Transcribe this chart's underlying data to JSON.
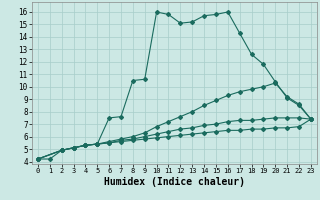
{
  "xlabel": "Humidex (Indice chaleur)",
  "bg_color": "#cce8e4",
  "line_color": "#1a6b5e",
  "xlim": [
    -0.5,
    23.5
  ],
  "ylim": [
    3.8,
    16.8
  ],
  "yticks": [
    4,
    5,
    6,
    7,
    8,
    9,
    10,
    11,
    12,
    13,
    14,
    15,
    16
  ],
  "xticks": [
    0,
    1,
    2,
    3,
    4,
    5,
    6,
    7,
    8,
    9,
    10,
    11,
    12,
    13,
    14,
    15,
    16,
    17,
    18,
    19,
    20,
    21,
    22,
    23
  ],
  "series": [
    {
      "x": [
        0,
        1,
        2,
        3,
        4,
        5,
        6,
        7,
        8,
        9,
        10,
        11,
        12,
        13,
        14,
        15,
        16,
        17,
        18,
        19,
        20,
        21,
        22,
        23
      ],
      "y": [
        4.2,
        4.2,
        4.9,
        5.1,
        5.3,
        5.4,
        7.5,
        7.6,
        10.5,
        10.6,
        16.0,
        15.8,
        15.1,
        15.2,
        15.7,
        15.8,
        16.0,
        14.3,
        12.6,
        11.8,
        10.4,
        9.1,
        8.5,
        7.4
      ]
    },
    {
      "x": [
        0,
        2,
        3,
        4,
        5,
        6,
        7,
        8,
        9,
        10,
        11,
        12,
        13,
        14,
        15,
        16,
        17,
        18,
        19,
        20,
        21,
        22,
        23
      ],
      "y": [
        4.2,
        4.9,
        5.1,
        5.3,
        5.4,
        5.6,
        5.8,
        6.0,
        6.3,
        6.8,
        7.2,
        7.6,
        8.0,
        8.5,
        8.9,
        9.3,
        9.6,
        9.8,
        10.0,
        10.3,
        9.2,
        8.6,
        7.4
      ]
    },
    {
      "x": [
        0,
        2,
        3,
        4,
        5,
        6,
        7,
        8,
        9,
        10,
        11,
        12,
        13,
        14,
        15,
        16,
        17,
        18,
        19,
        20,
        21,
        22,
        23
      ],
      "y": [
        4.2,
        4.9,
        5.1,
        5.3,
        5.4,
        5.5,
        5.7,
        5.8,
        6.0,
        6.2,
        6.4,
        6.6,
        6.7,
        6.9,
        7.0,
        7.2,
        7.3,
        7.3,
        7.4,
        7.5,
        7.5,
        7.5,
        7.4
      ]
    },
    {
      "x": [
        0,
        2,
        3,
        4,
        5,
        6,
        7,
        8,
        9,
        10,
        11,
        12,
        13,
        14,
        15,
        16,
        17,
        18,
        19,
        20,
        21,
        22,
        23
      ],
      "y": [
        4.2,
        4.9,
        5.1,
        5.3,
        5.4,
        5.5,
        5.6,
        5.7,
        5.8,
        5.9,
        6.0,
        6.1,
        6.2,
        6.3,
        6.4,
        6.5,
        6.5,
        6.6,
        6.6,
        6.7,
        6.7,
        6.8,
        7.4
      ]
    }
  ]
}
